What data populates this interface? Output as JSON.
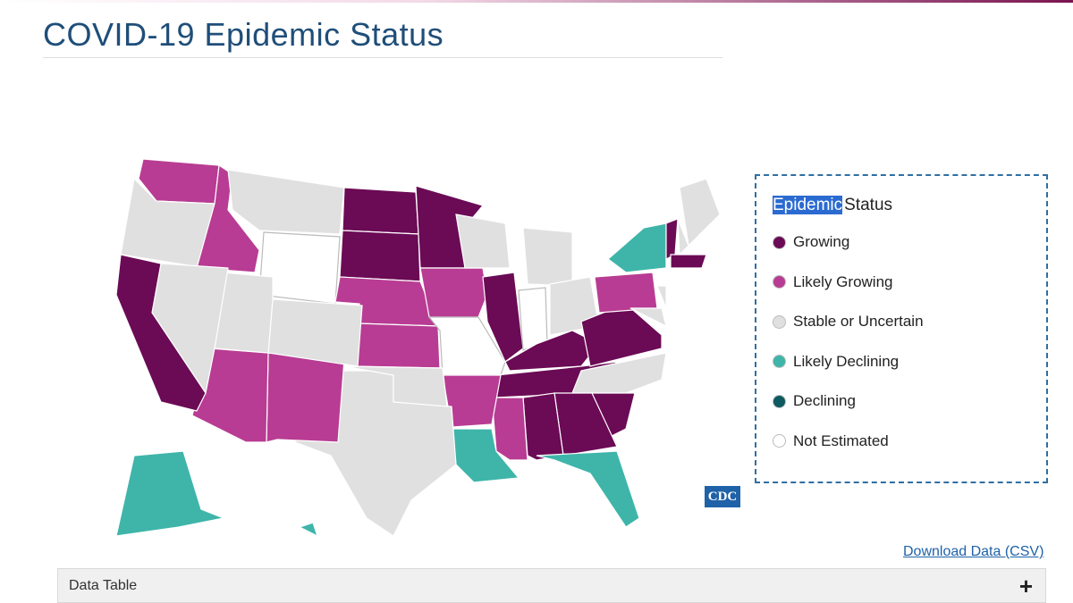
{
  "header": {
    "title": "COVID-19 Epidemic Status"
  },
  "legend": {
    "title_highlight": "Epidemic",
    "title_rest": "Status",
    "items": [
      {
        "label": "Growing",
        "color": "#6b0a55"
      },
      {
        "label": "Likely Growing",
        "color": "#b83c93"
      },
      {
        "label": "Stable or Uncertain",
        "color": "#e0e0e0"
      },
      {
        "label": "Likely Declining",
        "color": "#3fb5aa"
      },
      {
        "label": "Declining",
        "color": "#0d5a60"
      },
      {
        "label": "Not Estimated",
        "color": "#ffffff"
      }
    ]
  },
  "logo": "CDC",
  "download_link": "Download Data (CSV)",
  "data_table": {
    "label": "Data Table",
    "toggle": "+"
  }
}
